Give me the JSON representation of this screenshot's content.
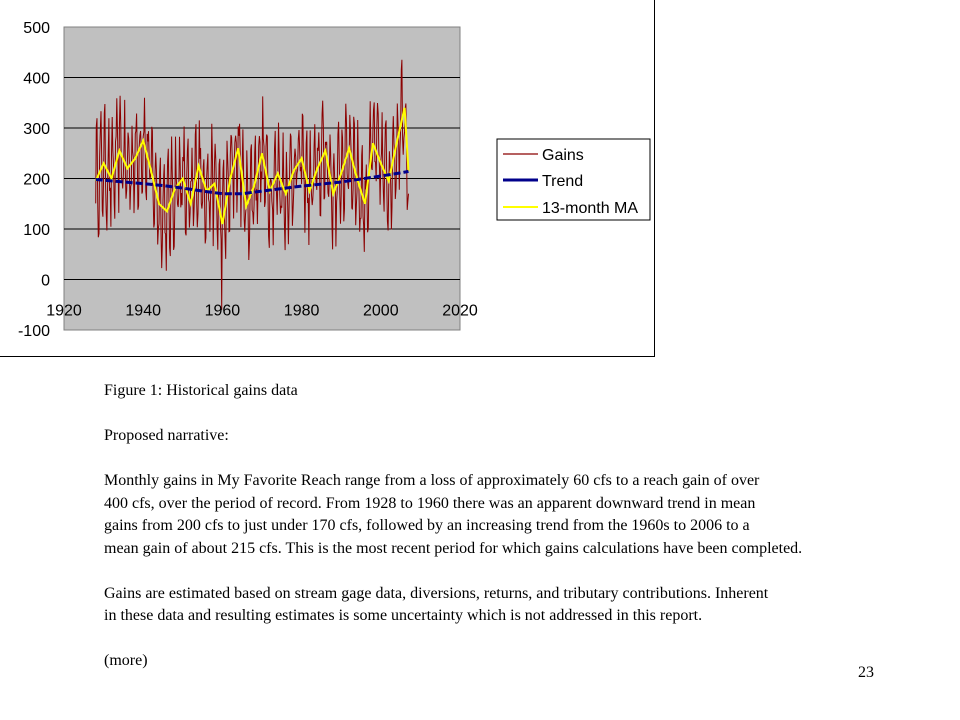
{
  "chart_data": {
    "type": "line",
    "title": "",
    "xlabel": "",
    "ylabel": "",
    "xlim": [
      1920,
      2020
    ],
    "ylim": [
      -100,
      500
    ],
    "x_ticks": [
      1920,
      1940,
      1960,
      1980,
      2000,
      2020
    ],
    "y_ticks": [
      500,
      400,
      300,
      200,
      100,
      0,
      -100
    ],
    "x_tick_labels": [
      "1920",
      "1940",
      "1960",
      "1980",
      "2000",
      "2020"
    ],
    "y_tick_labels": [
      "500",
      "400",
      "300",
      "200",
      "100",
      "0",
      "-100"
    ],
    "grid": "horizontal",
    "legend_position": "right",
    "series": [
      {
        "name": "Gains",
        "color": "#8b0000",
        "x_range": [
          1928,
          2007
        ],
        "mean_range": [
          130,
          270
        ],
        "amplitude": 80,
        "max": 435,
        "min": -60,
        "note_values": "monthly values oscillating about the moving average"
      },
      {
        "name": "Trend",
        "color": "#00008b",
        "style": "dashed",
        "x": [
          1928,
          1935,
          1940,
          1945,
          1950,
          1955,
          1960,
          1965,
          1970,
          1975,
          1980,
          1985,
          1990,
          1995,
          2000,
          2005,
          2007
        ],
        "y": [
          198,
          193,
          190,
          186,
          181,
          175,
          170,
          170,
          175,
          180,
          185,
          189,
          193,
          199,
          205,
          211,
          214
        ]
      },
      {
        "name": "13-month MA",
        "color": "#ffff00",
        "x": [
          1928,
          1930,
          1932,
          1934,
          1936,
          1938,
          1940,
          1942,
          1944,
          1946,
          1948,
          1950,
          1952,
          1954,
          1956,
          1958,
          1960,
          1962,
          1964,
          1966,
          1968,
          1970,
          1972,
          1974,
          1976,
          1978,
          1980,
          1982,
          1984,
          1986,
          1988,
          1990,
          1992,
          1994,
          1996,
          1998,
          2000,
          2002,
          2004,
          2006,
          2007
        ],
        "y": [
          195,
          230,
          200,
          255,
          220,
          240,
          275,
          215,
          150,
          135,
          180,
          200,
          150,
          225,
          175,
          190,
          110,
          200,
          260,
          145,
          185,
          250,
          175,
          210,
          170,
          215,
          240,
          175,
          220,
          255,
          170,
          210,
          260,
          200,
          150,
          270,
          230,
          195,
          270,
          340,
          215
        ]
      }
    ]
  },
  "text": {
    "figure_caption": "Figure 1:  Historical gains data",
    "narrative_label": "Proposed narrative:",
    "paragraph1_lines": [
      "Monthly gains in My Favorite Reach range from a loss of approximately 60 cfs to a reach gain of over",
      "400 cfs, over the period of record.  From 1928 to 1960 there was an apparent downward trend in mean",
      "gains from 200 cfs to just under 170 cfs, followed by an increasing trend from the 1960s to 2006 to a",
      "mean gain  of about 215 cfs.  This is the most recent period for which gains calculations have been completed."
    ],
    "paragraph2_lines": [
      "Gains are estimated based on stream gage data, diversions, returns, and tributary contributions.  Inherent",
      "in these data and resulting estimates is some uncertainty which is not addressed in this report."
    ],
    "more": "(more)",
    "page_number": "23"
  },
  "colors": {
    "plot_background": "#c0c0c0",
    "gridline": "#000000"
  }
}
